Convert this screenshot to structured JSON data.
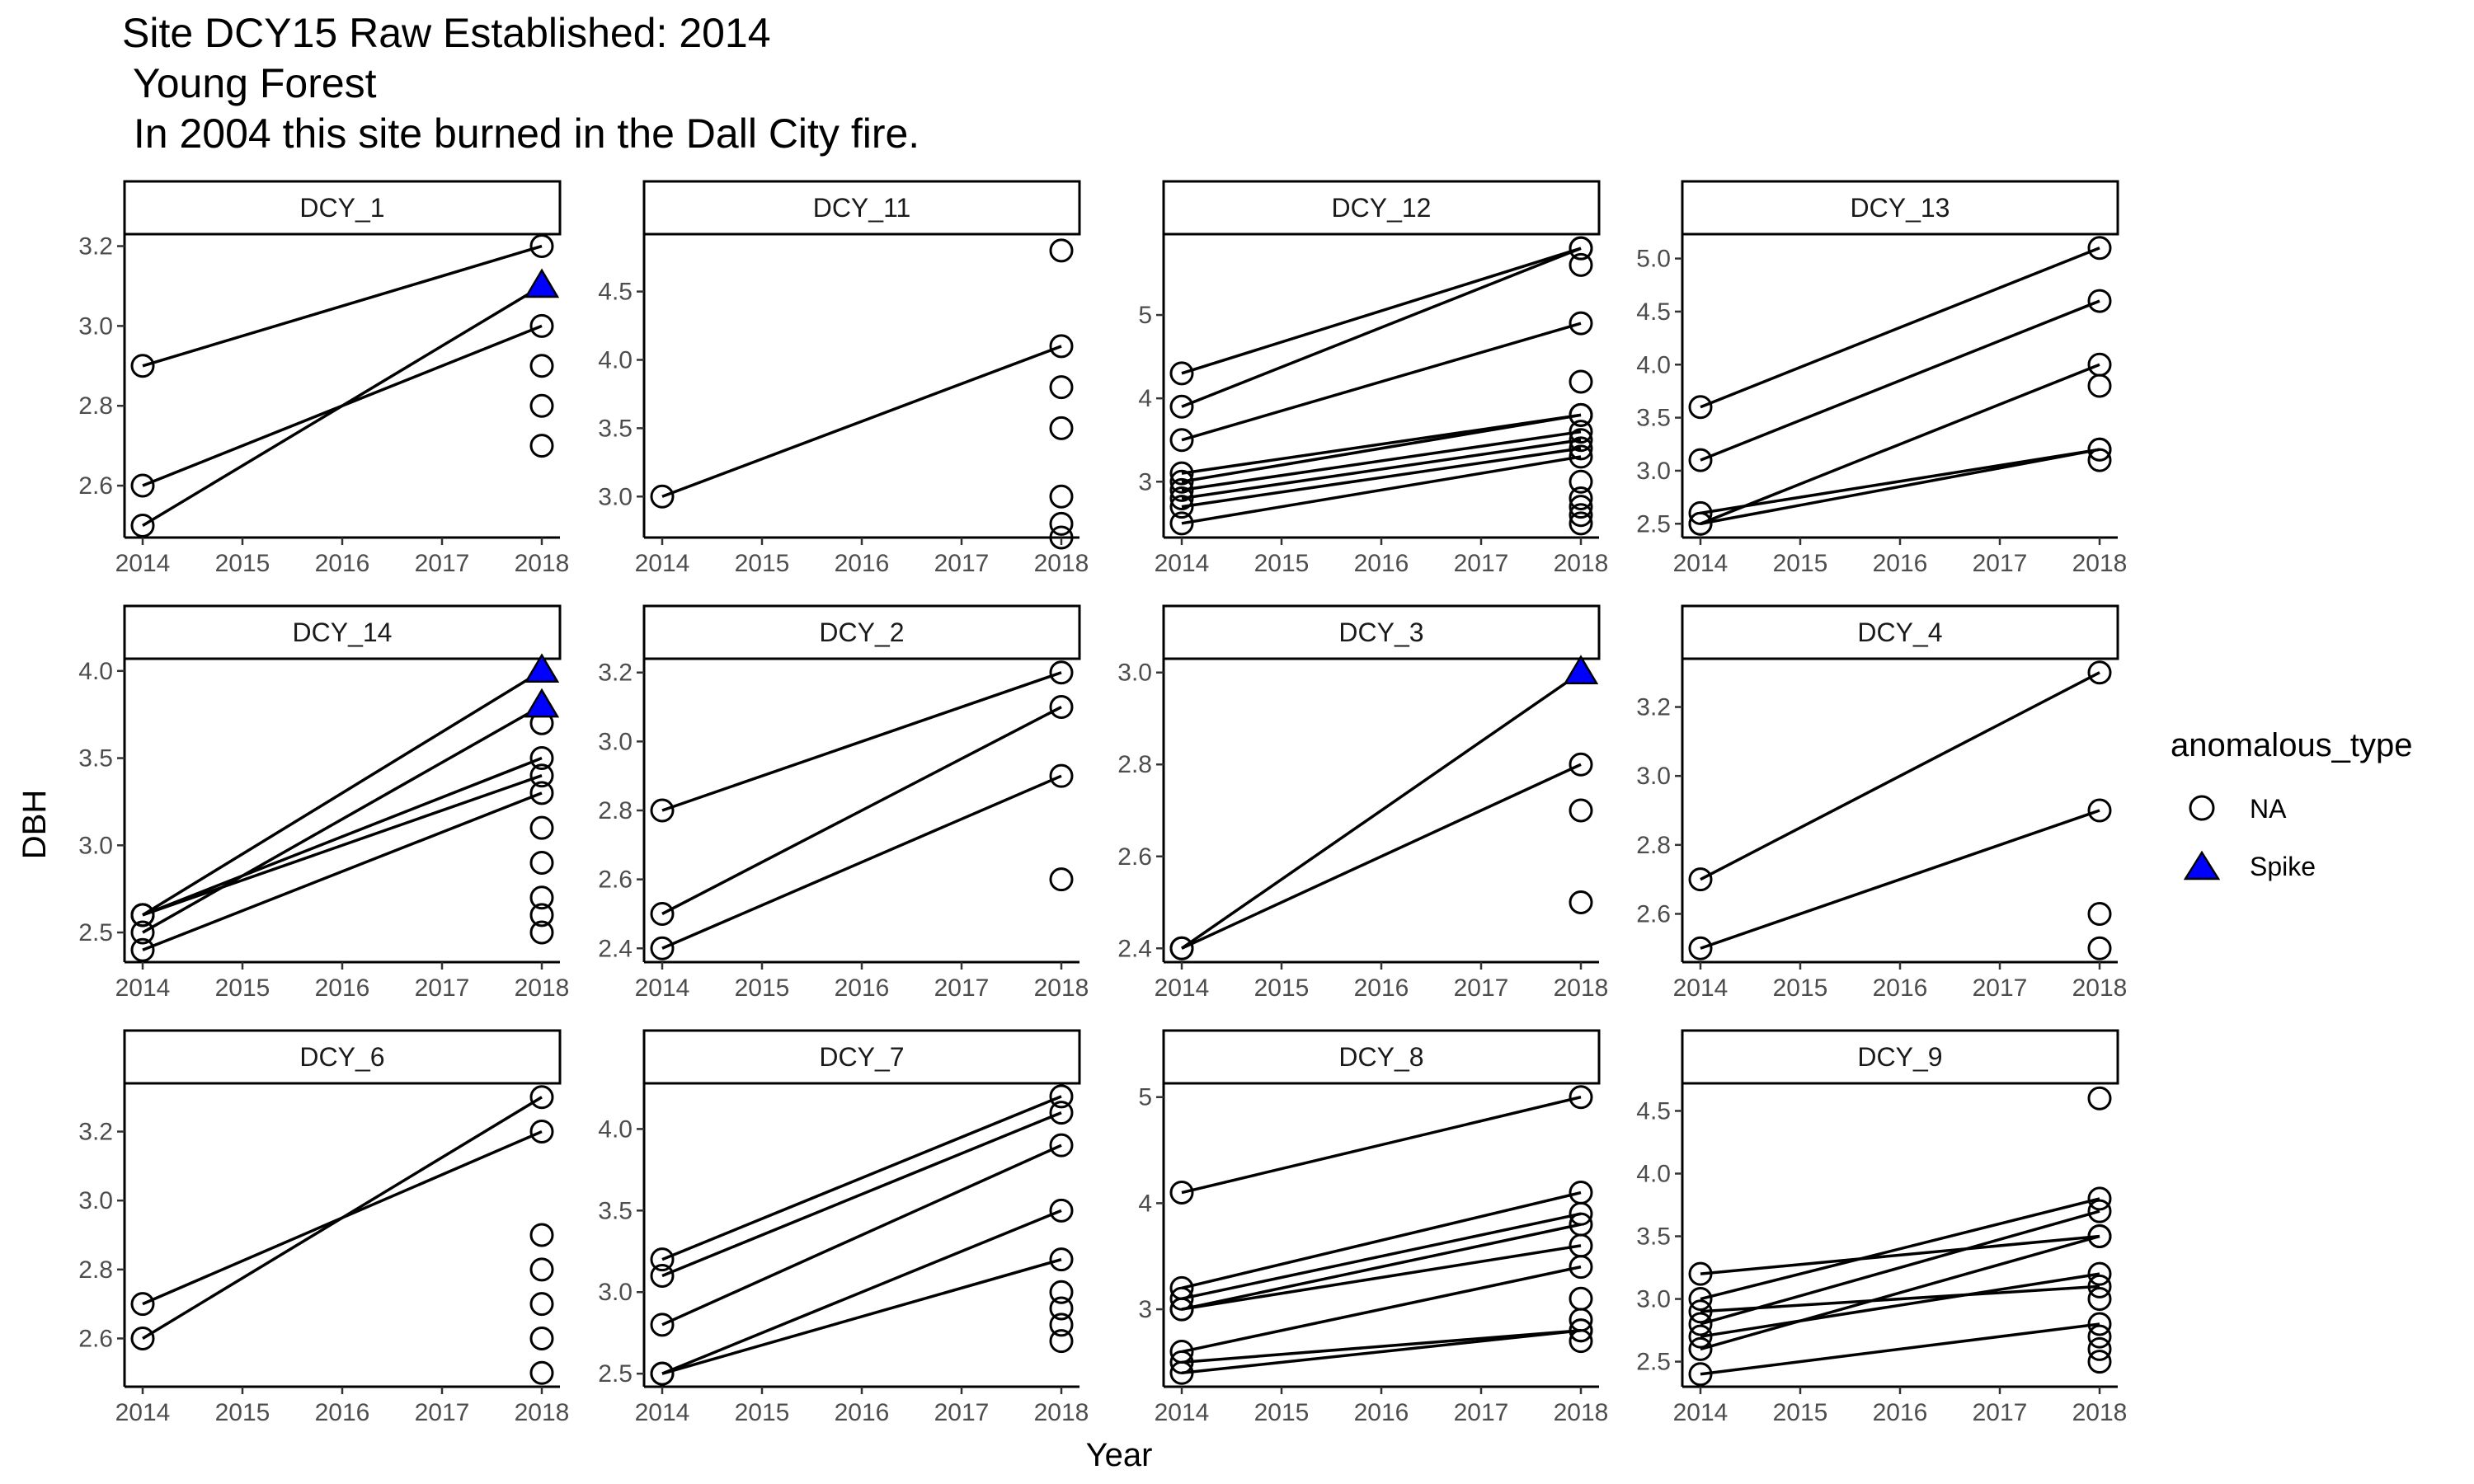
{
  "title": {
    "line1": "Site DCY15 Raw Established: 2014",
    "line2": " Young Forest",
    "line3": " In 2004 this site burned in the Dall City fire."
  },
  "colors": {
    "na": "#000000",
    "spike": "#0000ff"
  },
  "chart_data": {
    "type": "line",
    "xlabel": "Year",
    "ylabel": "DBH",
    "x_ticks": [
      2014,
      2015,
      2016,
      2017,
      2018
    ],
    "xlim": [
      2014,
      2018
    ],
    "grid": false,
    "legend": {
      "title": "anomalous_type",
      "placement": "right",
      "entries": [
        {
          "label": "NA",
          "shape": "open-circle"
        },
        {
          "label": "Spike",
          "shape": "filled-triangle",
          "color": "#0000ff"
        }
      ]
    },
    "facets": [
      {
        "name": "DCY_1",
        "ylim": [
          2.47,
          3.23
        ],
        "yticks": [
          "2.6",
          "2.8",
          "3.0",
          "3.2"
        ],
        "ytick_values": [
          2.6,
          2.8,
          3.0,
          3.2
        ],
        "trees": [
          [
            2.9,
            3.2
          ],
          [
            2.6,
            3.0
          ],
          [
            2.5,
            3.1
          ]
        ],
        "points_2018": [
          2.9,
          2.8,
          2.7
        ],
        "spikes_2018": [
          3.1
        ]
      },
      {
        "name": "DCY_11",
        "ylim": [
          2.7,
          4.92
        ],
        "yticks": [
          "3.0",
          "3.5",
          "4.0",
          "4.5"
        ],
        "ytick_values": [
          3.0,
          3.5,
          4.0,
          4.5
        ],
        "trees": [
          [
            3.0,
            4.1
          ]
        ],
        "points_2018": [
          4.8,
          3.8,
          3.5,
          3.0,
          2.8,
          2.7
        ],
        "spikes_2018": []
      },
      {
        "name": "DCY_12",
        "ylim": [
          2.33,
          5.97
        ],
        "yticks": [
          "3",
          "4",
          "5"
        ],
        "ytick_values": [
          3,
          4,
          5
        ],
        "trees": [
          [
            4.3,
            5.8
          ],
          [
            3.9,
            5.8
          ],
          [
            3.5,
            4.9
          ],
          [
            3.1,
            3.8
          ],
          [
            3.0,
            3.8
          ],
          [
            2.9,
            3.6
          ],
          [
            2.8,
            3.5
          ],
          [
            2.7,
            3.4
          ],
          [
            2.5,
            3.3
          ]
        ],
        "points_2018": [
          5.6,
          4.2,
          3.0,
          2.8,
          2.7,
          2.6,
          2.5
        ],
        "spikes_2018": []
      },
      {
        "name": "DCY_13",
        "ylim": [
          2.37,
          5.23
        ],
        "yticks": [
          "2.5",
          "3.0",
          "3.5",
          "4.0",
          "4.5",
          "5.0"
        ],
        "ytick_values": [
          2.5,
          3.0,
          3.5,
          4.0,
          4.5,
          5.0
        ],
        "trees": [
          [
            3.6,
            5.1
          ],
          [
            3.1,
            4.6
          ],
          [
            2.5,
            4.0
          ],
          [
            2.6,
            3.2
          ],
          [
            2.5,
            3.2
          ]
        ],
        "points_2018": [
          3.8,
          3.1
        ],
        "spikes_2018": []
      },
      {
        "name": "DCY_14",
        "ylim": [
          2.33,
          4.07
        ],
        "yticks": [
          "2.5",
          "3.0",
          "3.5",
          "4.0"
        ],
        "ytick_values": [
          2.5,
          3.0,
          3.5,
          4.0
        ],
        "trees": [
          [
            2.6,
            4.0
          ],
          [
            2.5,
            3.8
          ],
          [
            2.6,
            3.5
          ],
          [
            2.6,
            3.4
          ],
          [
            2.4,
            3.3
          ]
        ],
        "points_2018": [
          3.7,
          3.1,
          2.9,
          2.7,
          2.6,
          2.5
        ],
        "spikes_2018": [
          4.0,
          3.8
        ]
      },
      {
        "name": "DCY_2",
        "ylim": [
          2.36,
          3.24
        ],
        "yticks": [
          "2.4",
          "2.6",
          "2.8",
          "3.0",
          "3.2"
        ],
        "ytick_values": [
          2.4,
          2.6,
          2.8,
          3.0,
          3.2
        ],
        "trees": [
          [
            2.8,
            3.2
          ],
          [
            2.5,
            3.1
          ],
          [
            2.4,
            2.9
          ]
        ],
        "points_2018": [
          2.6
        ],
        "spikes_2018": []
      },
      {
        "name": "DCY_3",
        "ylim": [
          2.37,
          3.03
        ],
        "yticks": [
          "2.4",
          "2.6",
          "2.8",
          "3.0"
        ],
        "ytick_values": [
          2.4,
          2.6,
          2.8,
          3.0
        ],
        "trees": [
          [
            2.4,
            3.0
          ],
          [
            2.4,
            2.8
          ]
        ],
        "points_2018": [
          2.7,
          2.5
        ],
        "spikes_2018": [
          3.0
        ]
      },
      {
        "name": "DCY_4",
        "ylim": [
          2.46,
          3.34
        ],
        "yticks": [
          "2.6",
          "2.8",
          "3.0",
          "3.2"
        ],
        "ytick_values": [
          2.6,
          2.8,
          3.0,
          3.2
        ],
        "trees": [
          [
            2.7,
            3.3
          ],
          [
            2.5,
            2.9
          ]
        ],
        "points_2018": [
          2.6,
          2.5
        ],
        "spikes_2018": []
      },
      {
        "name": "DCY_6",
        "ylim": [
          2.46,
          3.34
        ],
        "yticks": [
          "2.6",
          "2.8",
          "3.0",
          "3.2"
        ],
        "ytick_values": [
          2.6,
          2.8,
          3.0,
          3.2
        ],
        "trees": [
          [
            2.7,
            3.2
          ],
          [
            2.6,
            3.3
          ]
        ],
        "points_2018": [
          2.9,
          2.8,
          2.7,
          2.6,
          2.5
        ],
        "spikes_2018": []
      },
      {
        "name": "DCY_7",
        "ylim": [
          2.42,
          4.28
        ],
        "yticks": [
          "2.5",
          "3.0",
          "3.5",
          "4.0"
        ],
        "ytick_values": [
          2.5,
          3.0,
          3.5,
          4.0
        ],
        "trees": [
          [
            3.2,
            4.2
          ],
          [
            3.1,
            4.1
          ],
          [
            2.8,
            3.9
          ],
          [
            2.5,
            3.5
          ],
          [
            2.5,
            3.2
          ]
        ],
        "points_2018": [
          3.0,
          2.9,
          2.8,
          2.7
        ],
        "spikes_2018": []
      },
      {
        "name": "DCY_8",
        "ylim": [
          2.27,
          5.13
        ],
        "yticks": [
          "3",
          "4",
          "5"
        ],
        "ytick_values": [
          3,
          4,
          5
        ],
        "trees": [
          [
            4.1,
            5.0
          ],
          [
            3.2,
            4.1
          ],
          [
            3.1,
            3.9
          ],
          [
            3.0,
            3.8
          ],
          [
            3.0,
            3.6
          ],
          [
            2.6,
            3.4
          ],
          [
            2.5,
            2.8
          ],
          [
            2.4,
            2.8
          ]
        ],
        "points_2018": [
          3.1,
          2.9,
          2.7
        ],
        "spikes_2018": []
      },
      {
        "name": "DCY_9",
        "ylim": [
          2.3,
          4.72
        ],
        "yticks": [
          "2.5",
          "3.0",
          "3.5",
          "4.0",
          "4.5"
        ],
        "ytick_values": [
          2.5,
          3.0,
          3.5,
          4.0,
          4.5
        ],
        "trees": [
          [
            3.2,
            3.5
          ],
          [
            3.0,
            3.8
          ],
          [
            2.9,
            3.1
          ],
          [
            2.8,
            3.7
          ],
          [
            2.7,
            3.2
          ],
          [
            2.6,
            3.5
          ],
          [
            2.4,
            2.8
          ]
        ],
        "points_2018": [
          4.6,
          3.0,
          2.7,
          2.6,
          2.5
        ],
        "spikes_2018": []
      }
    ]
  }
}
